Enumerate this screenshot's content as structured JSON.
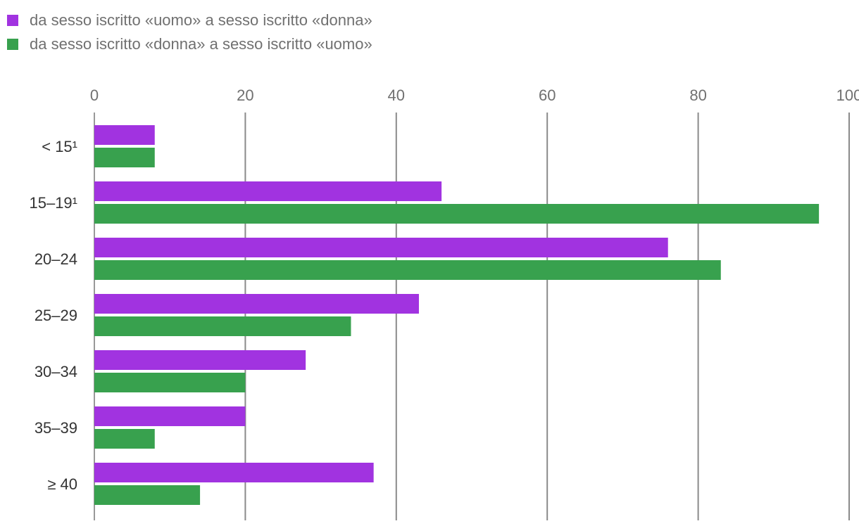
{
  "chart_data": {
    "type": "bar",
    "orientation": "horizontal",
    "title": "",
    "xlabel": "",
    "ylabel": "",
    "categories": [
      "< 15¹",
      "15–19¹",
      "20–24",
      "25–29",
      "30–34",
      "35–39",
      "≥ 40"
    ],
    "series": [
      {
        "name": "da sesso iscritto «uomo» a sesso iscritto «donna»",
        "color": "#a133e0",
        "values": [
          8,
          46,
          76,
          43,
          28,
          20,
          37
        ]
      },
      {
        "name": "da sesso iscritto «donna» a sesso iscritto «uomo»",
        "color": "#38a14e",
        "values": [
          8,
          96,
          83,
          34,
          20,
          8,
          14
        ]
      }
    ],
    "xlim": [
      0,
      100
    ],
    "x_ticks": [
      "0",
      "20",
      "40",
      "60",
      "80",
      "100"
    ],
    "x_tick_values": [
      0,
      20,
      40,
      60,
      80,
      100
    ],
    "grid": true,
    "legend_position": "top-left"
  }
}
